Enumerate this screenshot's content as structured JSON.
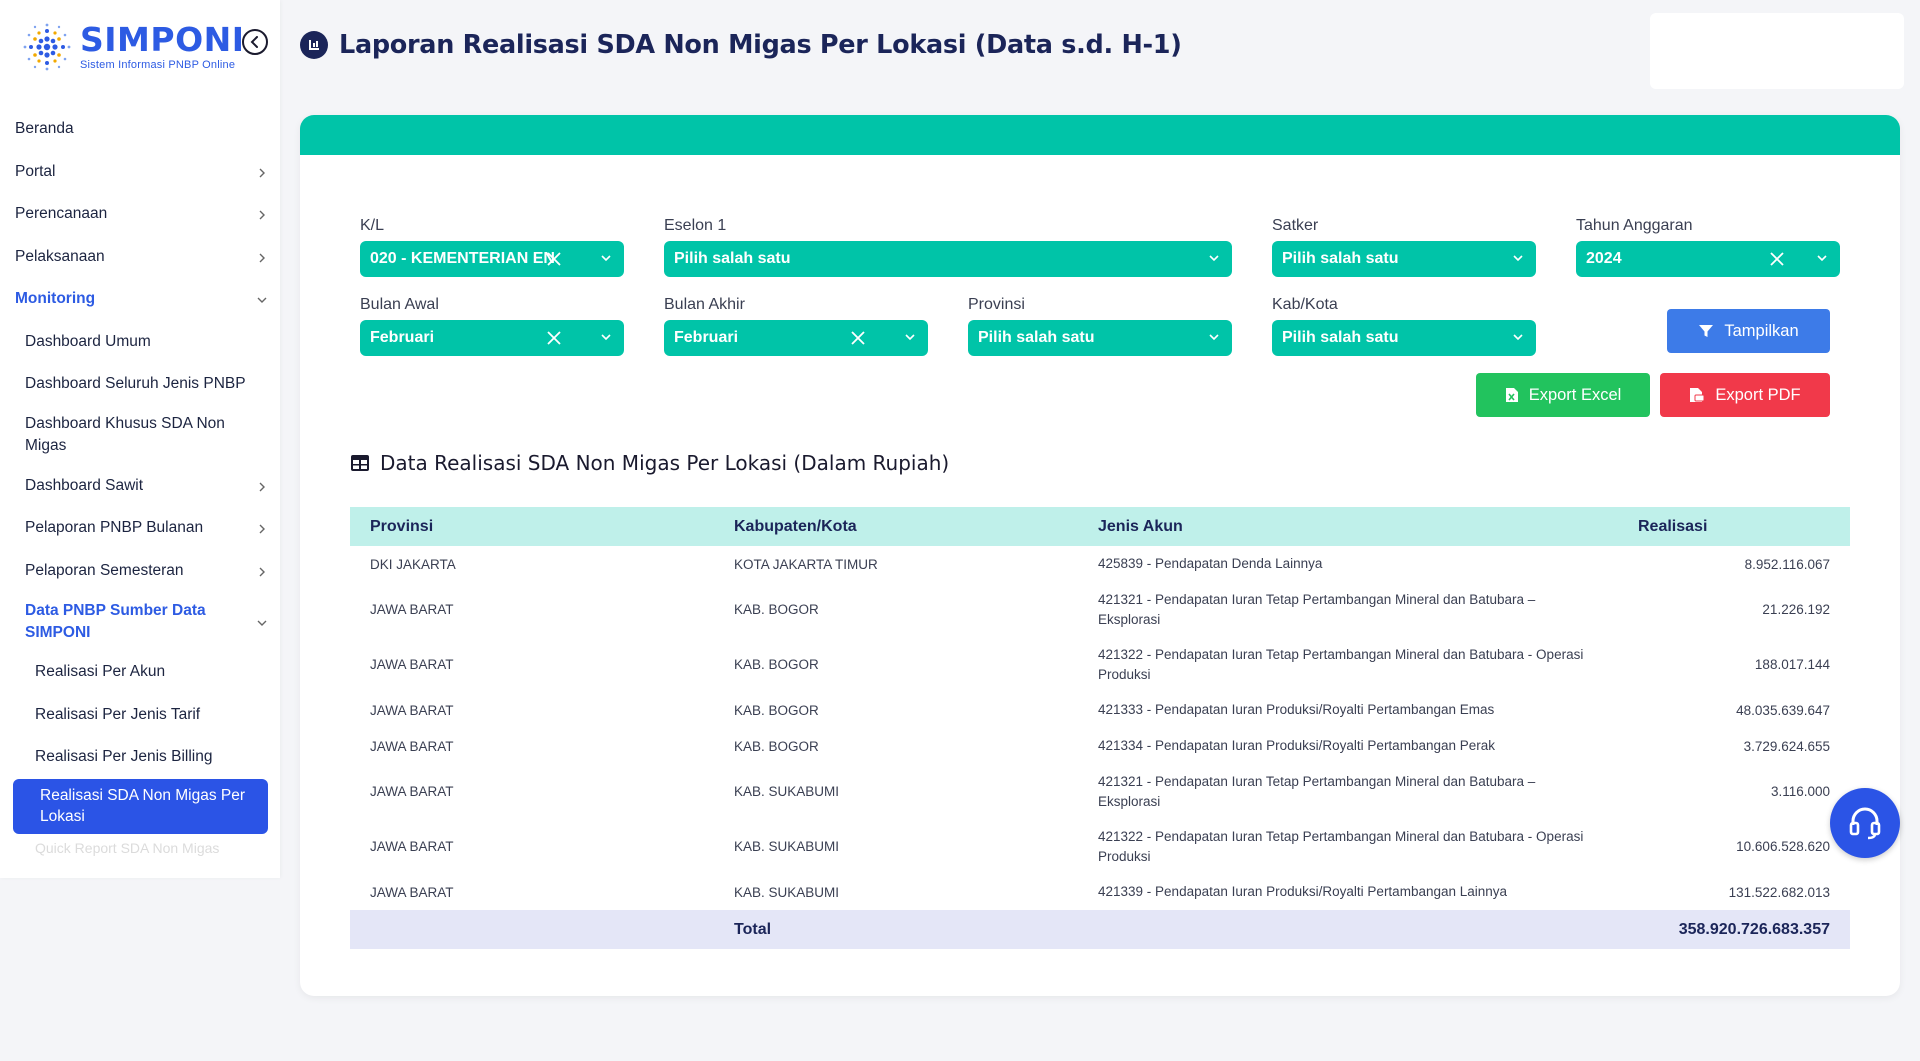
{
  "app": {
    "name": "SIMPONI",
    "subtitle": "Sistem Informasi PNBP Online"
  },
  "page_title": "Laporan Realisasi SDA Non Migas Per Lokasi (Data s.d. H-1)",
  "sidebar": {
    "items": [
      {
        "label": "Beranda"
      },
      {
        "label": "Portal"
      },
      {
        "label": "Perencanaan"
      },
      {
        "label": "Pelaksanaan"
      },
      {
        "label": "Monitoring"
      },
      {
        "label": "Dashboard Umum"
      },
      {
        "label": "Dashboard Seluruh Jenis PNBP"
      },
      {
        "label": "Dashboard Khusus SDA Non Migas"
      },
      {
        "label": "Dashboard Sawit"
      },
      {
        "label": "Pelaporan PNBP Bulanan"
      },
      {
        "label": "Pelaporan Semesteran"
      },
      {
        "label": "Data PNBP Sumber Data SIMPONI"
      },
      {
        "label": "Realisasi Per Akun"
      },
      {
        "label": "Realisasi Per Jenis Tarif"
      },
      {
        "label": "Realisasi Per Jenis Billing"
      },
      {
        "label": "Realisasi SDA Non Migas Per Lokasi"
      },
      {
        "label": "Quick Report SDA Non Migas"
      }
    ]
  },
  "filters": {
    "kl": {
      "label": "K/L",
      "value": "020 - KEMENTERIAN EN"
    },
    "eselon1": {
      "label": "Eselon 1",
      "value": "Pilih salah satu"
    },
    "satker": {
      "label": "Satker",
      "value": "Pilih salah satu"
    },
    "tahun": {
      "label": "Tahun Anggaran",
      "value": "2024"
    },
    "bulan_awal": {
      "label": "Bulan Awal",
      "value": "Februari"
    },
    "bulan_akhir": {
      "label": "Bulan Akhir",
      "value": "Februari"
    },
    "provinsi": {
      "label": "Provinsi",
      "value": "Pilih salah satu"
    },
    "kabkota": {
      "label": "Kab/Kota",
      "value": "Pilih salah satu"
    }
  },
  "buttons": {
    "tampilkan": "Tampilkan",
    "export_excel": "Export Excel",
    "export_pdf": "Export PDF"
  },
  "section_title": "Data Realisasi SDA Non Migas Per Lokasi (Dalam Rupiah)",
  "table": {
    "headers": [
      "Provinsi",
      "Kabupaten/Kota",
      "Jenis Akun",
      "Realisasi"
    ],
    "rows": [
      {
        "provinsi": "DKI JAKARTA",
        "kabkota": "KOTA JAKARTA TIMUR",
        "akun": "425839 - Pendapatan Denda Lainnya",
        "realisasi": "8.952.116.067"
      },
      {
        "provinsi": "JAWA BARAT",
        "kabkota": "KAB. BOGOR",
        "akun": "421321 - Pendapatan Iuran Tetap Pertambangan Mineral dan Batubara – Eksplorasi",
        "realisasi": "21.226.192"
      },
      {
        "provinsi": "JAWA BARAT",
        "kabkota": "KAB. BOGOR",
        "akun": "421322 - Pendapatan Iuran Tetap Pertambangan Mineral dan Batubara - Operasi Produksi",
        "realisasi": "188.017.144"
      },
      {
        "provinsi": "JAWA BARAT",
        "kabkota": "KAB. BOGOR",
        "akun": "421333 - Pendapatan Iuran Produksi/Royalti Pertambangan Emas",
        "realisasi": "48.035.639.647"
      },
      {
        "provinsi": "JAWA BARAT",
        "kabkota": "KAB. BOGOR",
        "akun": "421334 - Pendapatan Iuran Produksi/Royalti Pertambangan Perak",
        "realisasi": "3.729.624.655"
      },
      {
        "provinsi": "JAWA BARAT",
        "kabkota": "KAB. SUKABUMI",
        "akun": "421321 - Pendapatan Iuran Tetap Pertambangan Mineral dan Batubara – Eksplorasi",
        "realisasi": "3.116.000"
      },
      {
        "provinsi": "JAWA BARAT",
        "kabkota": "KAB. SUKABUMI",
        "akun": "421322 - Pendapatan Iuran Tetap Pertambangan Mineral dan Batubara - Operasi Produksi",
        "realisasi": "10.606.528.620"
      },
      {
        "provinsi": "JAWA BARAT",
        "kabkota": "KAB. SUKABUMI",
        "akun": "421339 - Pendapatan Iuran Produksi/Royalti Pertambangan Lainnya",
        "realisasi": "131.522.682.013"
      }
    ],
    "total_label": "Total",
    "total_value": "358.920.726.683.357"
  },
  "colors": {
    "teal": "#00c4a8",
    "primary_blue": "#2b54e6",
    "navy": "#1b2559",
    "green": "#22c35e",
    "red": "#f1394a"
  },
  "icons": [
    "back-circle-icon",
    "chevron-right-icon",
    "chevron-down-icon",
    "report-icon",
    "filter-icon",
    "excel-file-icon",
    "pdf-file-icon",
    "table-icon",
    "close-icon",
    "headset-icon"
  ]
}
